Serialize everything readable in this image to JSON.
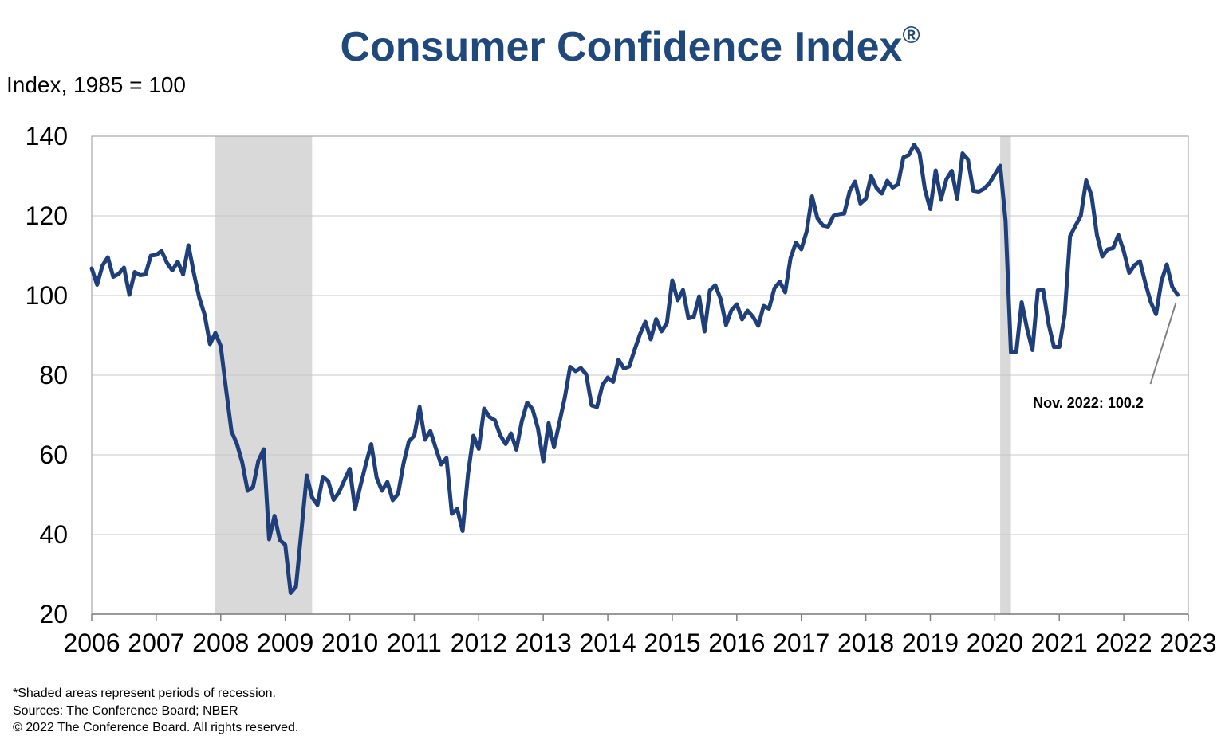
{
  "chart_data": {
    "type": "line",
    "title": "Consumer Confidence Index",
    "title_symbol": "®",
    "unit_label": "Index, 1985 = 100",
    "ylim": [
      20,
      140
    ],
    "yticks": [
      20,
      40,
      60,
      80,
      100,
      120,
      140
    ],
    "xlim": [
      "2006-01",
      "2023-01"
    ],
    "xticks": [
      "2006",
      "2007",
      "2008",
      "2009",
      "2010",
      "2011",
      "2012",
      "2013",
      "2014",
      "2015",
      "2016",
      "2017",
      "2018",
      "2019",
      "2020",
      "2021",
      "2022",
      "2023"
    ],
    "grid": true,
    "line_color": "#1f3f7a",
    "recession_color": "#d9d9d9",
    "recessions": [
      {
        "start": "2007-12",
        "end": "2009-06"
      },
      {
        "start": "2020-02",
        "end": "2020-04"
      }
    ],
    "annotation": {
      "text": "Nov. 2022: 100.2",
      "date": "2022-11",
      "value": 100.2
    },
    "series": [
      {
        "values": [
          [
            "2006-01",
            106.8
          ],
          [
            "2006-02",
            102.7
          ],
          [
            "2006-03",
            107.5
          ],
          [
            "2006-04",
            109.6
          ],
          [
            "2006-05",
            104.7
          ],
          [
            "2006-06",
            105.4
          ],
          [
            "2006-07",
            107.0
          ],
          [
            "2006-08",
            100.2
          ],
          [
            "2006-09",
            105.9
          ],
          [
            "2006-10",
            105.1
          ],
          [
            "2006-11",
            105.3
          ],
          [
            "2006-12",
            110.0
          ],
          [
            "2007-01",
            110.2
          ],
          [
            "2007-02",
            111.2
          ],
          [
            "2007-03",
            108.2
          ],
          [
            "2007-04",
            106.3
          ],
          [
            "2007-05",
            108.5
          ],
          [
            "2007-06",
            105.3
          ],
          [
            "2007-07",
            112.6
          ],
          [
            "2007-08",
            105.6
          ],
          [
            "2007-09",
            99.5
          ],
          [
            "2007-10",
            95.2
          ],
          [
            "2007-11",
            87.8
          ],
          [
            "2007-12",
            90.6
          ],
          [
            "2008-01",
            87.3
          ],
          [
            "2008-02",
            76.4
          ],
          [
            "2008-03",
            65.9
          ],
          [
            "2008-04",
            62.8
          ],
          [
            "2008-05",
            58.1
          ],
          [
            "2008-06",
            51.0
          ],
          [
            "2008-07",
            51.9
          ],
          [
            "2008-08",
            58.5
          ],
          [
            "2008-09",
            61.4
          ],
          [
            "2008-10",
            38.8
          ],
          [
            "2008-11",
            44.7
          ],
          [
            "2008-12",
            38.6
          ],
          [
            "2009-01",
            37.4
          ],
          [
            "2009-02",
            25.3
          ],
          [
            "2009-03",
            26.9
          ],
          [
            "2009-04",
            40.8
          ],
          [
            "2009-05",
            54.8
          ],
          [
            "2009-06",
            49.3
          ],
          [
            "2009-07",
            47.4
          ],
          [
            "2009-08",
            54.5
          ],
          [
            "2009-09",
            53.4
          ],
          [
            "2009-10",
            48.7
          ],
          [
            "2009-11",
            50.6
          ],
          [
            "2009-12",
            53.6
          ],
          [
            "2010-01",
            56.5
          ],
          [
            "2010-02",
            46.4
          ],
          [
            "2010-03",
            52.3
          ],
          [
            "2010-04",
            57.7
          ],
          [
            "2010-05",
            62.7
          ],
          [
            "2010-06",
            54.3
          ],
          [
            "2010-07",
            51.0
          ],
          [
            "2010-08",
            53.2
          ],
          [
            "2010-09",
            48.6
          ],
          [
            "2010-10",
            50.2
          ],
          [
            "2010-11",
            57.8
          ],
          [
            "2010-12",
            63.4
          ],
          [
            "2011-01",
            64.8
          ],
          [
            "2011-02",
            72.0
          ],
          [
            "2011-03",
            63.8
          ],
          [
            "2011-04",
            66.0
          ],
          [
            "2011-05",
            61.7
          ],
          [
            "2011-06",
            57.6
          ],
          [
            "2011-07",
            59.2
          ],
          [
            "2011-08",
            45.2
          ],
          [
            "2011-09",
            46.4
          ],
          [
            "2011-10",
            40.9
          ],
          [
            "2011-11",
            55.2
          ],
          [
            "2011-12",
            64.8
          ],
          [
            "2012-01",
            61.5
          ],
          [
            "2012-02",
            71.6
          ],
          [
            "2012-03",
            69.5
          ],
          [
            "2012-04",
            68.7
          ],
          [
            "2012-05",
            64.9
          ],
          [
            "2012-06",
            62.7
          ],
          [
            "2012-07",
            65.4
          ],
          [
            "2012-08",
            61.3
          ],
          [
            "2012-09",
            68.4
          ],
          [
            "2012-10",
            73.1
          ],
          [
            "2012-11",
            71.5
          ],
          [
            "2012-12",
            66.7
          ],
          [
            "2013-01",
            58.4
          ],
          [
            "2013-02",
            68.0
          ],
          [
            "2013-03",
            61.9
          ],
          [
            "2013-04",
            68.1
          ],
          [
            "2013-05",
            74.3
          ],
          [
            "2013-06",
            82.1
          ],
          [
            "2013-07",
            81.0
          ],
          [
            "2013-08",
            81.8
          ],
          [
            "2013-09",
            80.2
          ],
          [
            "2013-10",
            72.4
          ],
          [
            "2013-11",
            72.0
          ],
          [
            "2013-12",
            77.5
          ],
          [
            "2014-01",
            79.4
          ],
          [
            "2014-02",
            78.3
          ],
          [
            "2014-03",
            83.9
          ],
          [
            "2014-04",
            81.7
          ],
          [
            "2014-05",
            82.2
          ],
          [
            "2014-06",
            86.4
          ],
          [
            "2014-07",
            90.3
          ],
          [
            "2014-08",
            93.4
          ],
          [
            "2014-09",
            89.0
          ],
          [
            "2014-10",
            94.1
          ],
          [
            "2014-11",
            91.0
          ],
          [
            "2014-12",
            93.1
          ],
          [
            "2015-01",
            103.8
          ],
          [
            "2015-02",
            98.8
          ],
          [
            "2015-03",
            101.4
          ],
          [
            "2015-04",
            94.3
          ],
          [
            "2015-05",
            94.6
          ],
          [
            "2015-06",
            99.8
          ],
          [
            "2015-07",
            91.0
          ],
          [
            "2015-08",
            101.3
          ],
          [
            "2015-09",
            102.6
          ],
          [
            "2015-10",
            99.1
          ],
          [
            "2015-11",
            92.6
          ],
          [
            "2015-12",
            96.3
          ],
          [
            "2016-01",
            97.8
          ],
          [
            "2016-02",
            94.0
          ],
          [
            "2016-03",
            96.2
          ],
          [
            "2016-04",
            94.7
          ],
          [
            "2016-05",
            92.4
          ],
          [
            "2016-06",
            97.4
          ],
          [
            "2016-07",
            96.7
          ],
          [
            "2016-08",
            101.8
          ],
          [
            "2016-09",
            103.5
          ],
          [
            "2016-10",
            100.8
          ],
          [
            "2016-11",
            109.4
          ],
          [
            "2016-12",
            113.3
          ],
          [
            "2017-01",
            111.6
          ],
          [
            "2017-02",
            116.1
          ],
          [
            "2017-03",
            124.9
          ],
          [
            "2017-04",
            119.4
          ],
          [
            "2017-05",
            117.6
          ],
          [
            "2017-06",
            117.3
          ],
          [
            "2017-07",
            120.0
          ],
          [
            "2017-08",
            120.4
          ],
          [
            "2017-09",
            120.6
          ],
          [
            "2017-10",
            126.2
          ],
          [
            "2017-11",
            128.6
          ],
          [
            "2017-12",
            123.1
          ],
          [
            "2018-01",
            124.3
          ],
          [
            "2018-02",
            130.0
          ],
          [
            "2018-03",
            127.0
          ],
          [
            "2018-04",
            125.6
          ],
          [
            "2018-05",
            128.8
          ],
          [
            "2018-06",
            127.1
          ],
          [
            "2018-07",
            127.9
          ],
          [
            "2018-08",
            134.7
          ],
          [
            "2018-09",
            135.3
          ],
          [
            "2018-10",
            137.9
          ],
          [
            "2018-11",
            135.7
          ],
          [
            "2018-12",
            126.6
          ],
          [
            "2019-01",
            121.7
          ],
          [
            "2019-02",
            131.4
          ],
          [
            "2019-03",
            124.2
          ],
          [
            "2019-04",
            129.2
          ],
          [
            "2019-05",
            131.3
          ],
          [
            "2019-06",
            124.3
          ],
          [
            "2019-07",
            135.7
          ],
          [
            "2019-08",
            134.2
          ],
          [
            "2019-09",
            126.3
          ],
          [
            "2019-10",
            126.1
          ],
          [
            "2019-11",
            126.8
          ],
          [
            "2019-12",
            128.2
          ],
          [
            "2020-01",
            130.4
          ],
          [
            "2020-02",
            132.6
          ],
          [
            "2020-03",
            118.8
          ],
          [
            "2020-04",
            85.7
          ],
          [
            "2020-05",
            85.9
          ],
          [
            "2020-06",
            98.3
          ],
          [
            "2020-07",
            91.7
          ],
          [
            "2020-08",
            86.3
          ],
          [
            "2020-09",
            101.3
          ],
          [
            "2020-10",
            101.4
          ],
          [
            "2020-11",
            92.9
          ],
          [
            "2020-12",
            87.1
          ],
          [
            "2021-01",
            87.1
          ],
          [
            "2021-02",
            95.2
          ],
          [
            "2021-03",
            114.9
          ],
          [
            "2021-04",
            117.5
          ],
          [
            "2021-05",
            120.0
          ],
          [
            "2021-06",
            128.9
          ],
          [
            "2021-07",
            125.1
          ],
          [
            "2021-08",
            115.2
          ],
          [
            "2021-09",
            109.8
          ],
          [
            "2021-10",
            111.6
          ],
          [
            "2021-11",
            111.9
          ],
          [
            "2021-12",
            115.2
          ],
          [
            "2022-01",
            111.1
          ],
          [
            "2022-02",
            105.7
          ],
          [
            "2022-03",
            107.6
          ],
          [
            "2022-04",
            108.6
          ],
          [
            "2022-05",
            103.2
          ],
          [
            "2022-06",
            98.4
          ],
          [
            "2022-07",
            95.3
          ],
          [
            "2022-08",
            103.6
          ],
          [
            "2022-09",
            107.8
          ],
          [
            "2022-10",
            102.2
          ],
          [
            "2022-11",
            100.2
          ]
        ]
      }
    ]
  },
  "footnotes": {
    "recession_note": "*Shaded areas represent periods of recession.",
    "sources": "Sources: The Conference Board; NBER",
    "copyright": "© 2022 The Conference Board. All rights reserved."
  }
}
